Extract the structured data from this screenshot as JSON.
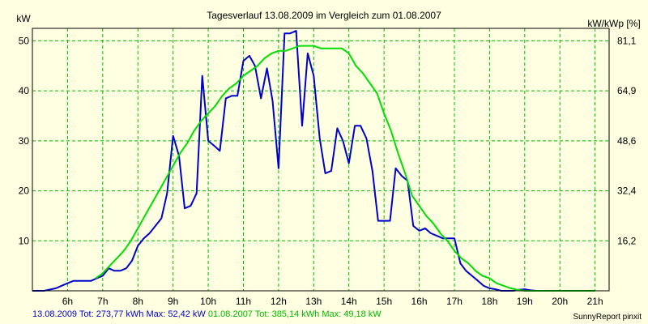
{
  "chart_data": {
    "type": "line",
    "title": "Tagesverlauf 13.08.2009 im Vergleich zum 01.08.2007",
    "ylabel_left": "kW",
    "ylabel_right": "kW/kWp [%]",
    "xlim": [
      5.0,
      21.4
    ],
    "ylim": [
      0,
      52.5
    ],
    "x_ticks": [
      6,
      7,
      8,
      9,
      10,
      11,
      12,
      13,
      14,
      15,
      16,
      17,
      18,
      19,
      20,
      21
    ],
    "x_tick_labels": [
      "6h",
      "7h",
      "8h",
      "9h",
      "10h",
      "11h",
      "12h",
      "13h",
      "14h",
      "15h",
      "16h",
      "17h",
      "18h",
      "19h",
      "20h",
      "21h"
    ],
    "y_ticks": [
      10,
      20,
      30,
      40,
      50
    ],
    "y_tick_labels": [
      "10",
      "20",
      "30",
      "40",
      "50"
    ],
    "y2_ticks": [
      10,
      20,
      30,
      40,
      50
    ],
    "y2_tick_labels": [
      "16,2",
      "32,4",
      "48,6",
      "64,9",
      "81,1"
    ],
    "grid": true,
    "colors": {
      "series_2009": "#0000cc",
      "series_2007": "#00dd00",
      "grid": "#00bb00",
      "background": "#ffffe1"
    },
    "series": [
      {
        "name": "13.08.2009",
        "x": [
          5.0,
          5.33,
          5.67,
          5.83,
          6.0,
          6.17,
          6.33,
          6.5,
          6.67,
          6.83,
          7.0,
          7.17,
          7.33,
          7.5,
          7.67,
          7.83,
          8.0,
          8.17,
          8.33,
          8.5,
          8.67,
          8.83,
          9.0,
          9.17,
          9.33,
          9.5,
          9.67,
          9.83,
          10.0,
          10.17,
          10.33,
          10.5,
          10.67,
          10.83,
          11.0,
          11.17,
          11.33,
          11.5,
          11.67,
          11.83,
          12.0,
          12.17,
          12.33,
          12.5,
          12.67,
          12.83,
          13.0,
          13.17,
          13.33,
          13.5,
          13.67,
          13.83,
          14.0,
          14.17,
          14.33,
          14.5,
          14.67,
          14.83,
          15.0,
          15.17,
          15.33,
          15.5,
          15.67,
          15.83,
          16.0,
          16.17,
          16.33,
          16.5,
          16.67,
          16.83,
          17.0,
          17.17,
          17.33,
          17.5,
          17.67,
          17.83,
          18.0,
          18.17,
          18.33,
          18.5,
          18.67,
          18.83,
          19.0,
          19.17,
          19.33,
          19.5,
          19.67,
          19.83
        ],
        "values": [
          0,
          0,
          0.5,
          1,
          1.5,
          2,
          2,
          2,
          2,
          2.5,
          3,
          4.5,
          4,
          4,
          4.5,
          6,
          9,
          10.5,
          11.5,
          13,
          14.5,
          19.5,
          31,
          27,
          16.5,
          17,
          19.5,
          43,
          30,
          29,
          28,
          38.5,
          39,
          39,
          46,
          47,
          45,
          38.5,
          44.5,
          38,
          24.5,
          51.5,
          51.5,
          52,
          33,
          47.5,
          43,
          30.5,
          23.5,
          24,
          32.5,
          30,
          25.5,
          33,
          33,
          30.5,
          24,
          14,
          14,
          14,
          24.5,
          23,
          22,
          13,
          12,
          12.5,
          11.5,
          11,
          10.5,
          10.5,
          10.5,
          5.5,
          4,
          3,
          2,
          1,
          0.5,
          0.3,
          0,
          0,
          0,
          0.2,
          0.3,
          0.1,
          0,
          0,
          0,
          0
        ]
      },
      {
        "name": "01.08.2007",
        "x": [
          6.8,
          7.0,
          7.2,
          7.4,
          7.6,
          7.8,
          8.0,
          8.2,
          8.4,
          8.6,
          8.8,
          9.0,
          9.2,
          9.4,
          9.6,
          9.8,
          10.0,
          10.2,
          10.4,
          10.6,
          10.8,
          11.0,
          11.2,
          11.4,
          11.6,
          11.8,
          12.0,
          12.2,
          12.4,
          12.6,
          12.8,
          13.0,
          13.2,
          13.4,
          13.6,
          13.8,
          14.0,
          14.2,
          14.4,
          14.6,
          14.8,
          15.0,
          15.2,
          15.4,
          15.6,
          15.8,
          16.0,
          16.2,
          16.4,
          16.6,
          16.8,
          17.0,
          17.2,
          17.4,
          17.6,
          17.8,
          18.0,
          18.2,
          18.4,
          18.6,
          18.8,
          19.0,
          19.2,
          19.4,
          19.6,
          19.8,
          20.0,
          20.2,
          20.4,
          20.6,
          20.8,
          21.0
        ],
        "values": [
          2.5,
          3.5,
          5,
          6.5,
          8,
          10,
          12.5,
          15,
          17.5,
          20,
          22.5,
          25,
          27.5,
          29.5,
          32,
          34,
          35.5,
          37,
          39,
          40.5,
          41.5,
          43,
          44,
          45,
          46.5,
          47.5,
          48,
          48,
          48.5,
          49,
          49,
          49,
          48.5,
          48.5,
          48.5,
          48.5,
          47.5,
          45,
          43.5,
          41.5,
          39.5,
          35.5,
          32,
          27.5,
          23.5,
          19,
          17,
          15,
          13.5,
          11.5,
          10,
          8,
          6.5,
          5.5,
          4,
          3,
          2.5,
          1.5,
          1,
          0.5,
          0.2,
          0,
          0,
          0,
          0,
          0,
          0,
          0,
          0,
          0,
          0,
          0
        ]
      }
    ]
  },
  "footer": {
    "s1_label": "13.08.2009 Tot: 273,77 kWh Max: 52,42 kW",
    "s2_label": "01.08.2007 Tot: 385,14 kWh Max: 49,18 kW",
    "credit": "SunnyReport pinxit"
  }
}
